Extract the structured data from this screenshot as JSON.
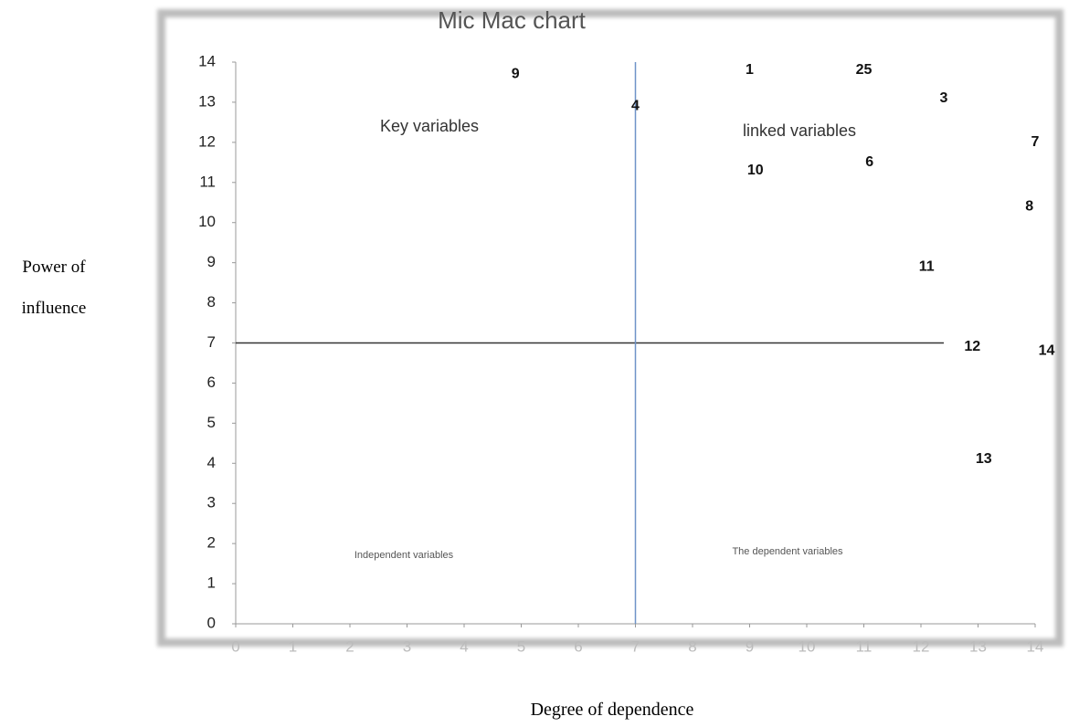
{
  "chart_data": {
    "type": "scatter",
    "title": "Mic Mac chart",
    "x_label": "Degree of dependence",
    "y_label": "Power of influence",
    "xlim": [
      0,
      14
    ],
    "ylim": [
      0,
      14
    ],
    "xticks": [
      0,
      1,
      2,
      3,
      4,
      5,
      6,
      7,
      8,
      9,
      10,
      11,
      12,
      13,
      14
    ],
    "yticks": [
      0,
      1,
      2,
      3,
      4,
      5,
      6,
      7,
      8,
      9,
      10,
      11,
      12,
      13,
      14
    ],
    "points": [
      {
        "label": "9",
        "x": 4.9,
        "y": 13.7
      },
      {
        "label": "1",
        "x": 9.0,
        "y": 13.8
      },
      {
        "label": "25",
        "x": 11.0,
        "y": 13.8
      },
      {
        "label": "3",
        "x": 12.4,
        "y": 13.1
      },
      {
        "label": "4",
        "x": 7.0,
        "y": 12.9
      },
      {
        "label": "7",
        "x": 14.0,
        "y": 12.0
      },
      {
        "label": "10",
        "x": 9.1,
        "y": 11.3
      },
      {
        "label": "6",
        "x": 11.1,
        "y": 11.5
      },
      {
        "label": "8",
        "x": 13.9,
        "y": 10.4
      },
      {
        "label": "11",
        "x": 12.1,
        "y": 8.9
      },
      {
        "label": "12",
        "x": 12.9,
        "y": 6.9
      },
      {
        "label": "14",
        "x": 14.2,
        "y": 6.8
      },
      {
        "label": "13",
        "x": 13.1,
        "y": 4.1
      }
    ],
    "hline": {
      "y": 7,
      "color": "#333333"
    },
    "vline": {
      "x": 7,
      "color": "#6f93c8"
    },
    "annotations": [
      "Key variables",
      "linked variables",
      "Independent variables",
      "The dependent variables"
    ]
  }
}
